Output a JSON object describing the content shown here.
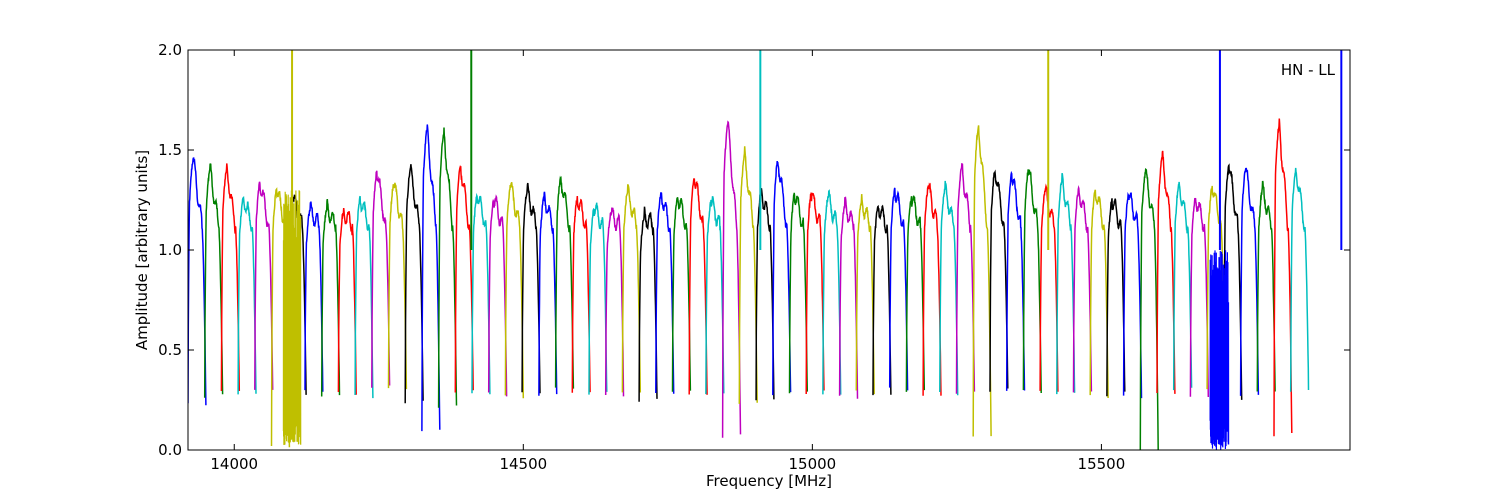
{
  "chart_data": {
    "type": "line",
    "title": "",
    "xlabel": "Frequency [MHz]",
    "ylabel": "Amplitude [arbitrary units]",
    "xlim": [
      13920,
      15930
    ],
    "ylim": [
      0,
      2.0
    ],
    "x_ticks": [
      14000,
      14500,
      15000,
      15500
    ],
    "y_ticks": [
      0.0,
      0.5,
      1.0,
      1.5,
      2.0
    ],
    "x_tick_labels": [
      "14000",
      "14500",
      "15000",
      "15500"
    ],
    "y_tick_labels": [
      "0.0",
      "0.5",
      "1.0",
      "1.5",
      "2.0"
    ],
    "annotation": "HN - LL",
    "grid": false,
    "band_start": 13920,
    "band_width": 28.9,
    "band_overlap": 2.0,
    "band_colors": [
      "#0000ff",
      "#008000",
      "#ff0000",
      "#00bfbf",
      "#bf00bf",
      "#bfbf00",
      "#000000"
    ],
    "band_peaks": [
      1.45,
      1.4,
      1.4,
      1.26,
      1.34,
      1.3,
      1.26,
      1.2,
      1.21,
      1.19,
      1.26,
      1.39,
      1.33,
      1.4,
      1.6,
      1.58,
      1.42,
      1.28,
      1.25,
      1.32,
      1.3,
      1.26,
      1.36,
      1.26,
      1.21,
      1.18,
      1.29,
      1.17,
      1.28,
      1.27,
      1.36,
      1.24,
      1.62,
      1.47,
      1.29,
      1.45,
      1.28,
      1.28,
      1.26,
      1.22,
      1.24,
      1.22,
      1.3,
      1.26,
      1.31,
      1.3,
      1.41,
      1.61,
      1.4,
      1.38,
      1.4,
      1.29,
      1.35,
      1.3,
      1.3,
      1.25,
      1.28,
      1.38,
      1.46,
      1.32,
      1.26,
      1.32,
      1.42,
      1.4,
      1.3,
      1.62,
      1.4
    ],
    "band_minima": [
      0.23,
      0.27,
      0.3,
      0.27,
      0.3,
      0.02,
      0.28,
      0.3,
      0.28,
      0.28,
      0.27,
      0.32,
      0.3,
      0.24,
      0.09,
      0.22,
      0.3,
      0.28,
      0.28,
      0.27,
      0.28,
      0.28,
      0.3,
      0.28,
      0.28,
      0.28,
      0.28,
      0.25,
      0.28,
      0.29,
      0.27,
      0.28,
      0.07,
      0.23,
      0.26,
      0.28,
      0.28,
      0.29,
      0.28,
      0.26,
      0.29,
      0.27,
      0.3,
      0.29,
      0.27,
      0.28,
      0.29,
      0.08,
      0.3,
      0.3,
      0.29,
      0.3,
      0.28,
      0.28,
      0.27,
      0.28,
      0.27,
      0.0,
      0.28,
      0.3,
      0.27,
      0.3,
      0.25,
      0.28,
      0.29,
      0.08,
      0.3
    ],
    "spikes": [
      {
        "x": 14100,
        "y": 2.0,
        "color": "#bfbf00"
      },
      {
        "x": 14410,
        "y": 2.0,
        "color": "#008000"
      },
      {
        "x": 14910,
        "y": 2.0,
        "color": "#00bfbf"
      },
      {
        "x": 15408,
        "y": 2.0,
        "color": "#bfbf00"
      },
      {
        "x": 15705,
        "y": 2.0,
        "color": "#0000ff"
      },
      {
        "x": 15915,
        "y": 2.0,
        "color": "#0000ff"
      }
    ],
    "dense_noise_regions": [
      {
        "x0": 14085,
        "x1": 14115,
        "y0": 0.02,
        "y1": 1.3,
        "color": "#bfbf00"
      },
      {
        "x0": 15688,
        "x1": 15720,
        "y0": 0.0,
        "y1": 1.0,
        "color": "#0000ff"
      }
    ]
  }
}
